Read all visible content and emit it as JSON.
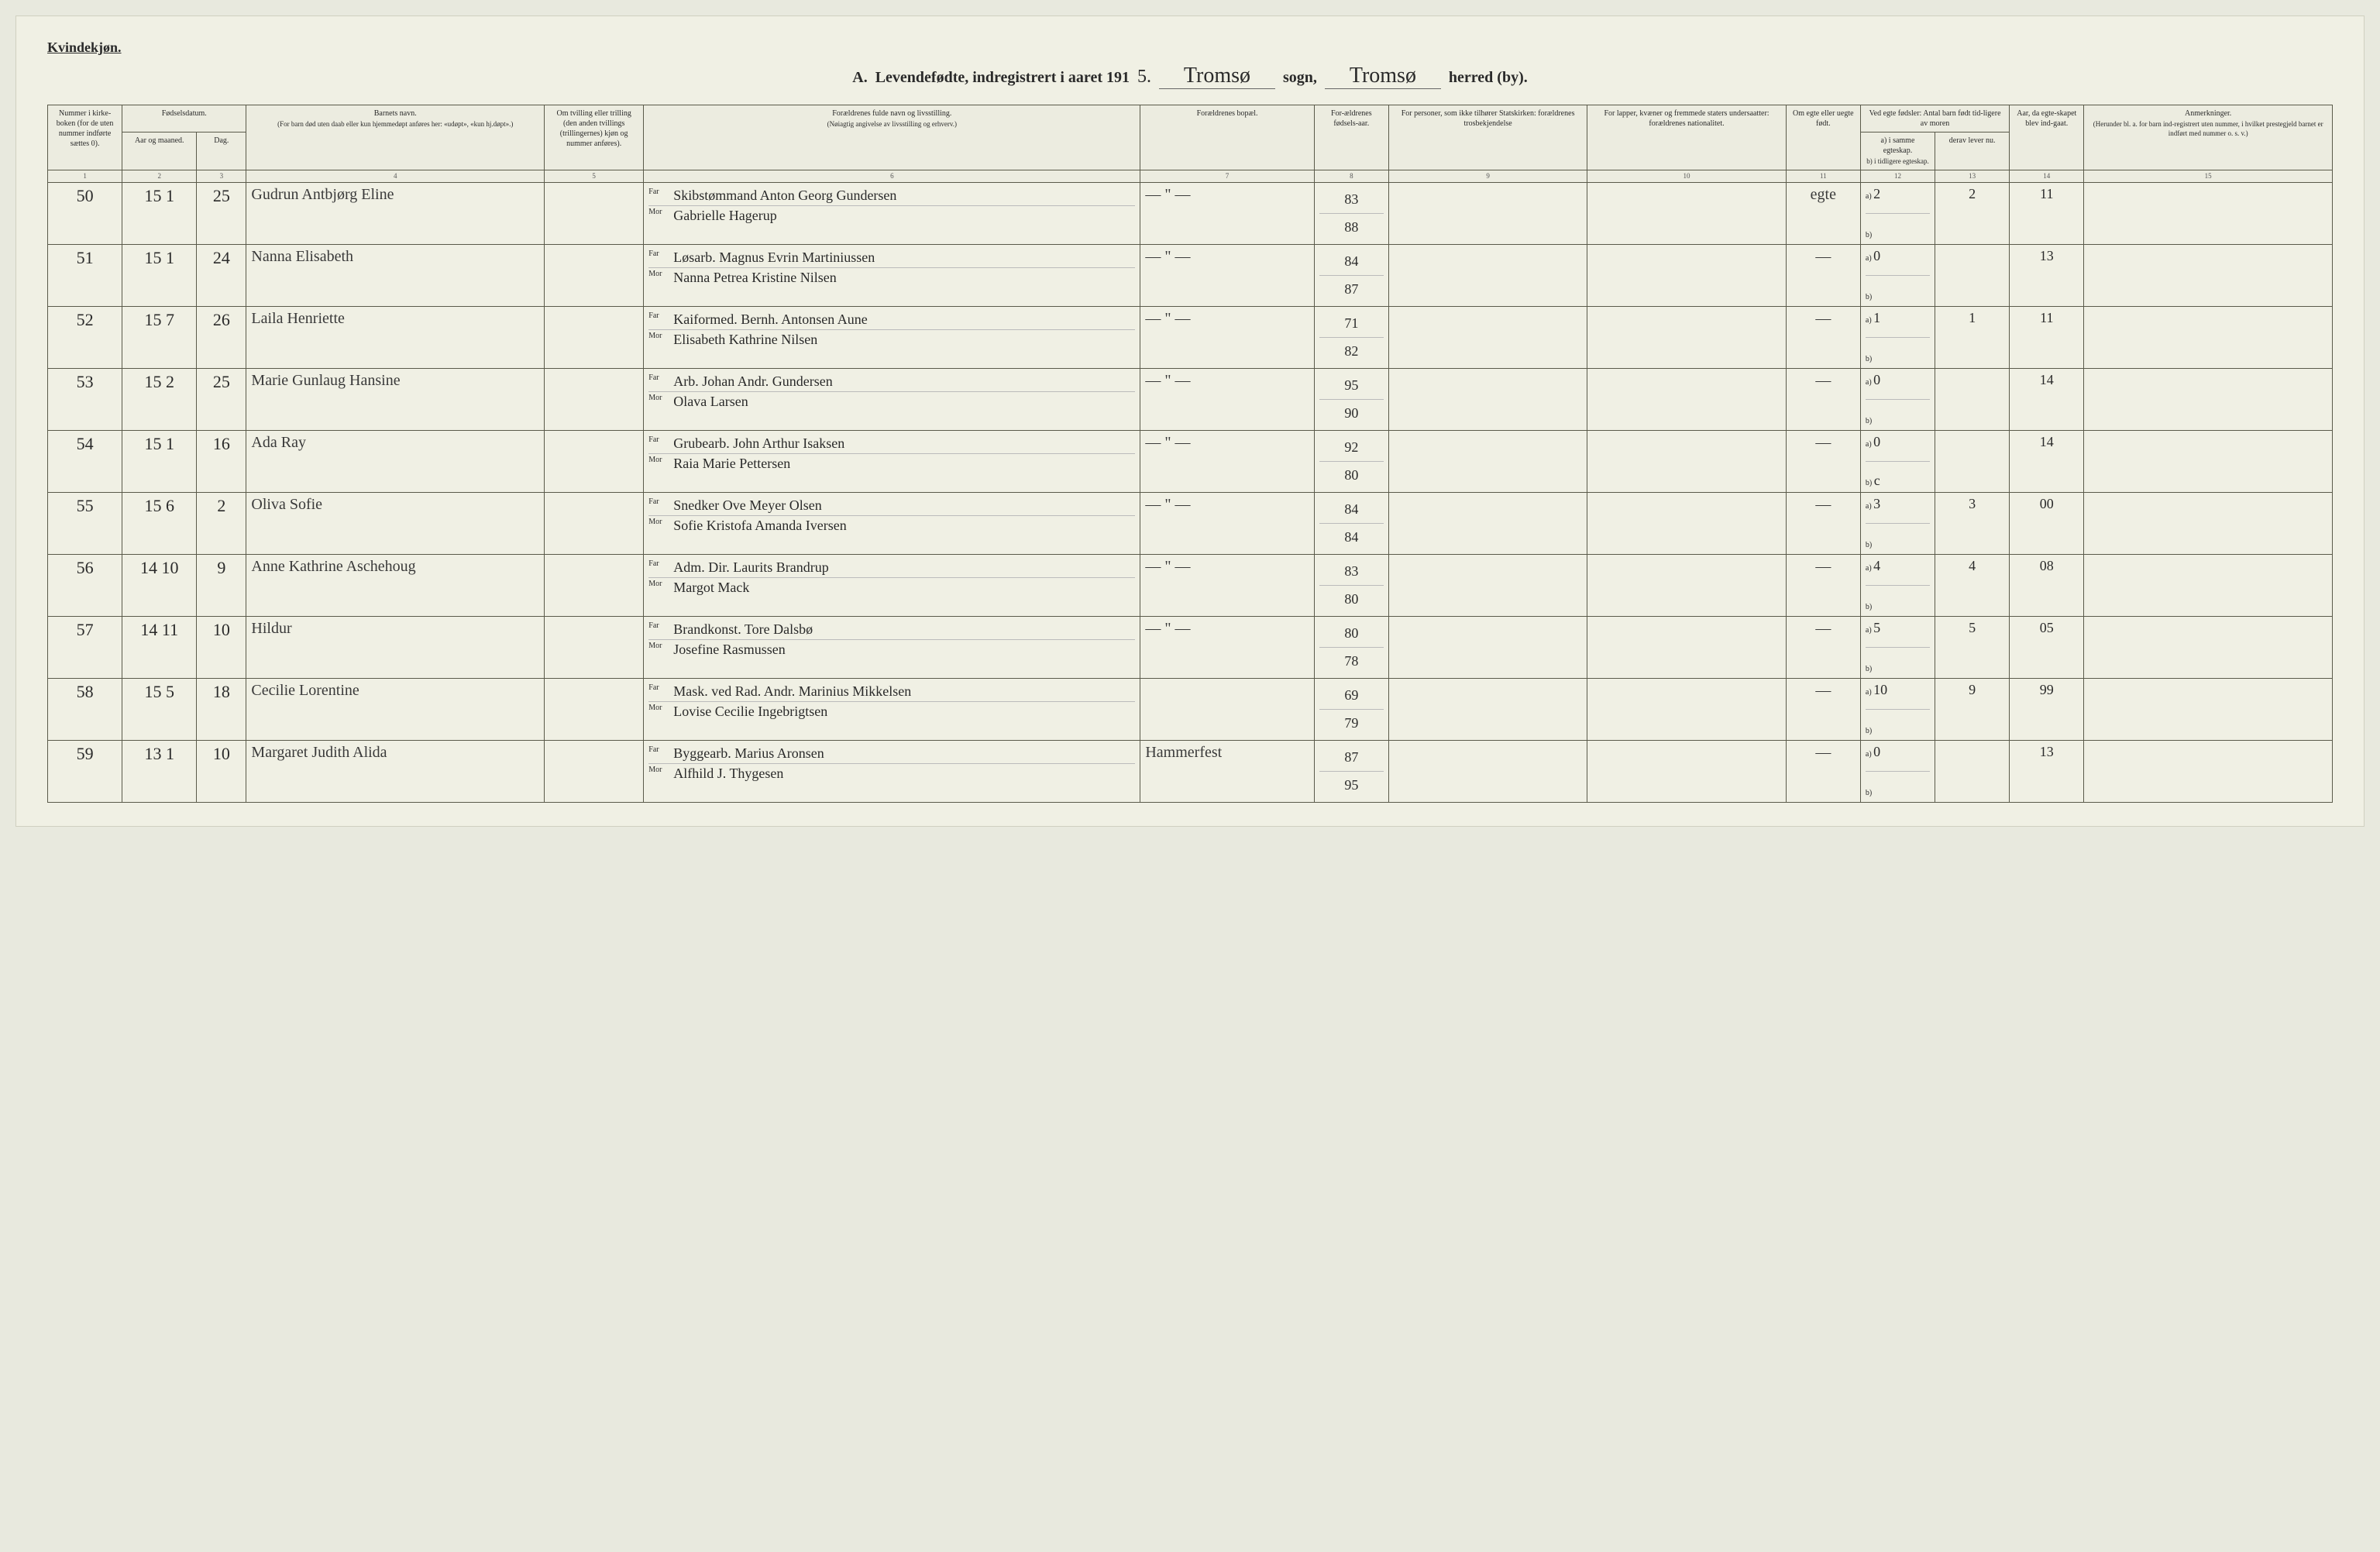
{
  "gender_label": "Kvindekjøn.",
  "header": {
    "title_prefix": "A.",
    "title_main": "Levendefødte, indregistrert i aaret 191",
    "year_digit": "5.",
    "sogn_value": "Tromsø",
    "sogn_label": "sogn,",
    "herred_value": "Tromsø",
    "herred_label": "herred (by)."
  },
  "columns": {
    "c1": "Nummer i kirke-boken (for de uten nummer indførte sættes 0).",
    "c2_group": "Fødselsdatum.",
    "c2": "Aar og maaned.",
    "c3": "Dag.",
    "c4": "Barnets navn.",
    "c4_sub": "(For barn død uten daab eller kun hjemmedøpt anføres her: «udøpt», «kun hj.døpt».)",
    "c5": "Om tvilling eller trilling (den anden tvillings (trillingernes) kjøn og nummer anføres).",
    "c6": "Forældrenes fulde navn og livsstilling.",
    "c6_sub": "(Nøiagtig angivelse av livsstilling og erhverv.)",
    "c6_far": "Far",
    "c6_mor": "Mor",
    "c7": "Forældrenes bopæl.",
    "c8": "For-ældrenes fødsels-aar.",
    "c9": "For personer, som ikke tilhører Statskirken: forældrenes trosbekjendelse",
    "c10": "For lapper, kvæner og fremmede staters undersaatter: forældrenes nationalitet.",
    "c11": "Om egte eller uegte født.",
    "c12_group": "Ved egte fødsler: Antal barn født tid-ligere av moren",
    "c12a": "a) i samme egteskap.",
    "c12b": "b) i tidligere egteskap.",
    "c13": "derav lever nu.",
    "c14": "Aar, da egte-skapet blev ind-gaat.",
    "c15": "Anmerkninger.",
    "c15_sub": "(Herunder bl. a. for barn ind-registrert uten nummer, i hvilket prestegjeld barnet er indført med nummer o. s. v.)"
  },
  "colnums": [
    "1",
    "2",
    "3",
    "4",
    "5",
    "6",
    "7",
    "8",
    "9",
    "10",
    "11",
    "12",
    "13",
    "14",
    "15"
  ],
  "rows": [
    {
      "no": "50",
      "ym": "15  1",
      "day": "25",
      "name": "Gudrun Antbjørg Eline",
      "twin": "",
      "far": "Skibstømmand Anton Georg Gundersen",
      "mor": "Gabrielle Hagerup",
      "bopel": "— \" —",
      "fy": "83",
      "my": "88",
      "c9": "",
      "c10": "",
      "egte": "egte",
      "a": "2",
      "b": "",
      "derav": "2",
      "aar": "11",
      "anm": ""
    },
    {
      "no": "51",
      "ym": "15  1",
      "day": "24",
      "name": "Nanna Elisabeth",
      "twin": "",
      "far": "Løsarb. Magnus Evrin Martiniussen",
      "mor": "Nanna Petrea Kristine Nilsen",
      "bopel": "— \" —",
      "fy": "84",
      "my": "87",
      "c9": "",
      "c10": "",
      "egte": "—",
      "a": "0",
      "b": "",
      "derav": "",
      "aar": "13",
      "anm": ""
    },
    {
      "no": "52",
      "ym": "15  7",
      "day": "26",
      "name": "Laila Henriette",
      "twin": "",
      "far": "Kaiformed. Bernh. Antonsen Aune",
      "mor": "Elisabeth Kathrine Nilsen",
      "bopel": "— \" —",
      "fy": "71",
      "my": "82",
      "c9": "",
      "c10": "",
      "egte": "—",
      "a": "1",
      "b": "",
      "derav": "1",
      "aar": "11",
      "anm": ""
    },
    {
      "no": "53",
      "ym": "15  2",
      "day": "25",
      "name": "Marie Gunlaug Hansine",
      "twin": "",
      "far": "Arb. Johan Andr. Gundersen",
      "mor": "Olava Larsen",
      "bopel": "— \" —",
      "fy": "95",
      "my": "90",
      "c9": "",
      "c10": "",
      "egte": "—",
      "a": "0",
      "b": "",
      "derav": "",
      "aar": "14",
      "anm": ""
    },
    {
      "no": "54",
      "ym": "15  1",
      "day": "16",
      "name": "Ada Ray",
      "twin": "",
      "far": "Grubearb. John Arthur Isaksen",
      "mor": "Raia Marie Pettersen",
      "bopel": "— \" —",
      "fy": "92",
      "my": "80",
      "c9": "",
      "c10": "",
      "egte": "—",
      "a": "0",
      "b": "c",
      "derav": "",
      "aar": "14",
      "anm": ""
    },
    {
      "no": "55",
      "ym": "15  6",
      "day": "2",
      "name": "Oliva Sofie",
      "twin": "",
      "far": "Snedker Ove Meyer Olsen",
      "mor": "Sofie Kristofa Amanda Iversen",
      "bopel": "— \" —",
      "fy": "84",
      "my": "84",
      "c9": "",
      "c10": "",
      "egte": "—",
      "a": "3",
      "b": "",
      "derav": "3",
      "aar": "00",
      "anm": ""
    },
    {
      "no": "56",
      "ym": "14 10",
      "day": "9",
      "name": "Anne Kathrine Aschehoug",
      "twin": "",
      "far": "Adm. Dir. Laurits Brandrup",
      "mor": "Margot Mack",
      "bopel": "— \" —",
      "fy": "83",
      "my": "80",
      "c9": "",
      "c10": "",
      "egte": "—",
      "a": "4",
      "b": "",
      "derav": "4",
      "aar": "08",
      "anm": ""
    },
    {
      "no": "57",
      "ym": "14 11",
      "day": "10",
      "name": "Hildur",
      "twin": "",
      "far": "Brandkonst. Tore Dalsbø",
      "mor": "Josefine Rasmussen",
      "bopel": "— \" —",
      "fy": "80",
      "my": "78",
      "c9": "",
      "c10": "",
      "egte": "—",
      "a": "5",
      "b": "",
      "derav": "5",
      "aar": "05",
      "anm": ""
    },
    {
      "no": "58",
      "ym": "15  5",
      "day": "18",
      "name": "Cecilie Lorentine",
      "twin": "",
      "far": "Mask. ved Rad. Andr. Marinius Mikkelsen",
      "mor": "Lovise Cecilie Ingebrigtsen",
      "bopel": "",
      "fy": "69",
      "my": "79",
      "c9": "",
      "c10": "",
      "egte": "—",
      "a": "10",
      "b": "",
      "derav": "9",
      "aar": "99",
      "anm": ""
    },
    {
      "no": "59",
      "ym": "13  1",
      "day": "10",
      "name": "Margaret Judith Alida",
      "twin": "",
      "far": "Byggearb. Marius Aronsen",
      "mor": "Alfhild J. Thygesen",
      "bopel": "Hammerfest",
      "fy": "87",
      "my": "95",
      "c9": "",
      "c10": "",
      "egte": "—",
      "a": "0",
      "b": "",
      "derav": "",
      "aar": "13",
      "anm": ""
    }
  ]
}
